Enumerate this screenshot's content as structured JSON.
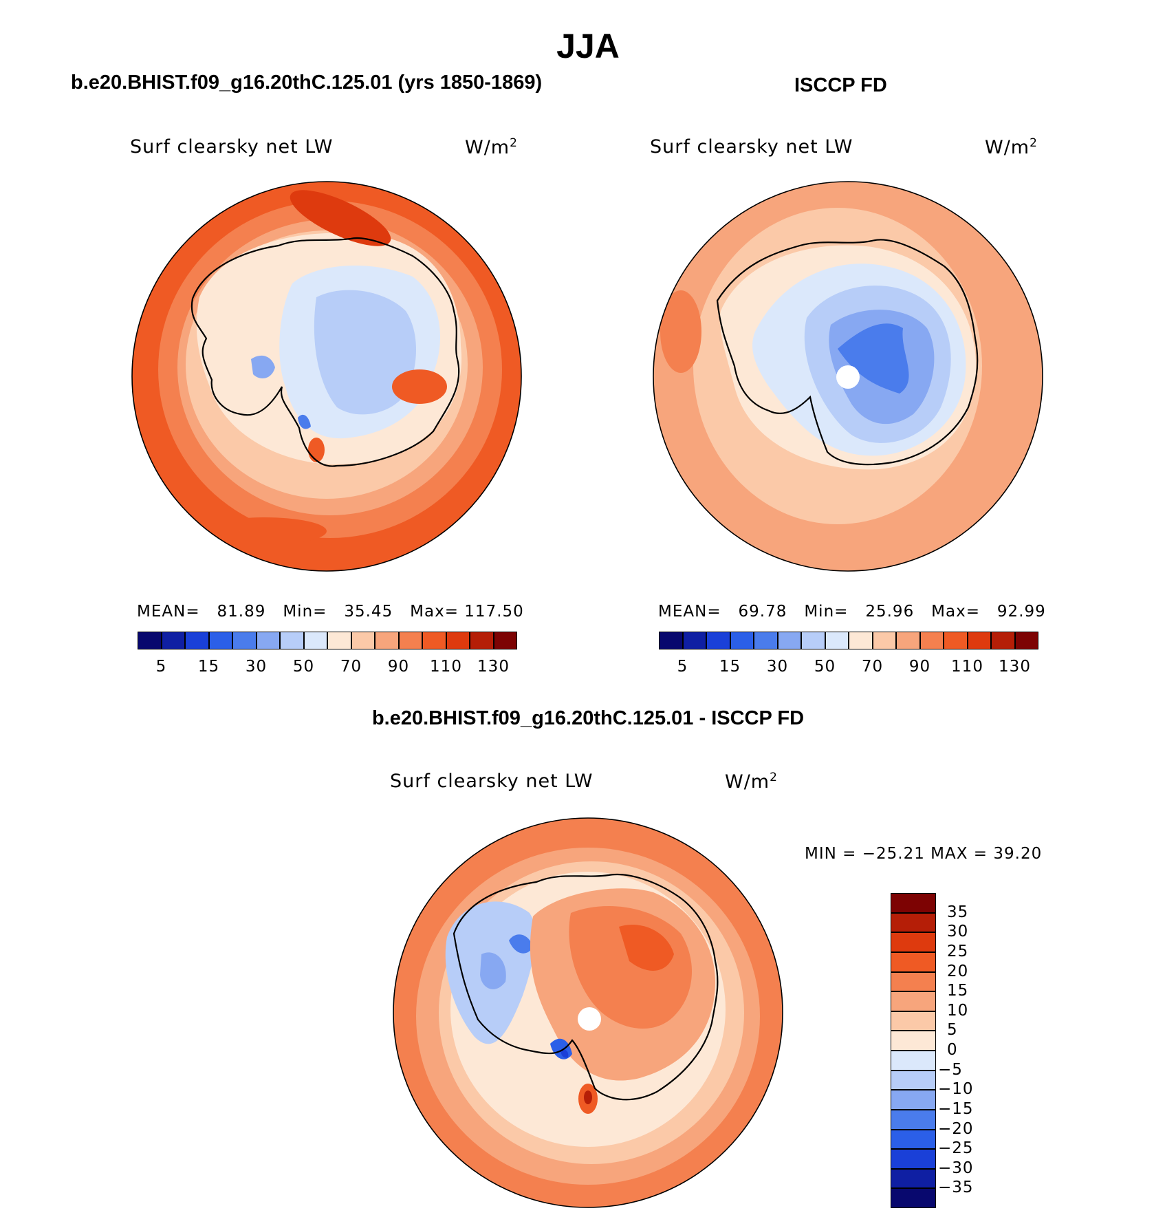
{
  "main_title": "JJA",
  "panels": {
    "model": {
      "title": "b.e20.BHIST.f09_g16.20thC.125.01 (yrs 1850-1869)",
      "variable": "Surf clearsky net LW",
      "units": "W/m",
      "units_exp": "2",
      "stats": {
        "mean_label": "MEAN=",
        "mean": "81.89",
        "min_label": "Min=",
        "min": "35.45",
        "max_label": "Max=",
        "max": "117.50"
      }
    },
    "obs": {
      "title": "ISCCP FD",
      "variable": "Surf clearsky net LW",
      "units": "W/m",
      "units_exp": "2",
      "stats": {
        "mean_label": "MEAN=",
        "mean": "69.78",
        "min_label": "Min=",
        "min": "25.96",
        "max_label": "Max=",
        "max": "92.99"
      }
    },
    "diff": {
      "title": "b.e20.BHIST.f09_g16.20thC.125.01 - ISCCP FD",
      "variable": "Surf clearsky net LW",
      "units": "W/m",
      "units_exp": "2",
      "minmax_text": "MIN = −25.21 MAX =   39.20"
    }
  },
  "colorbars": {
    "abs_labels": [
      "5",
      "15",
      "30",
      "50",
      "70",
      "90",
      "110",
      "130"
    ],
    "abs_colors": [
      "#08086e",
      "#0f1fa3",
      "#1a40d8",
      "#2b5fe8",
      "#4a7cec",
      "#87a8f2",
      "#b7cdf8",
      "#dbe8fb",
      "#fde8d6",
      "#fbc9a8",
      "#f7a57c",
      "#f4804f",
      "#ef5a24",
      "#de3a0e",
      "#b51e07",
      "#7d0303"
    ],
    "diff_labels": [
      "35",
      "30",
      "25",
      "20",
      "15",
      "10",
      "5",
      "0",
      "−5",
      "−10",
      "−15",
      "−20",
      "−25",
      "−30",
      "−35"
    ],
    "diff_colors": [
      "#7d0303",
      "#b51e07",
      "#de3a0e",
      "#ef5a24",
      "#f4804f",
      "#f7a57c",
      "#fbc9a8",
      "#fde8d6",
      "#dbe8fb",
      "#b7cdf8",
      "#87a8f2",
      "#4a7cec",
      "#2b5fe8",
      "#1a40d8",
      "#0f1fa3",
      "#08086e"
    ]
  }
}
